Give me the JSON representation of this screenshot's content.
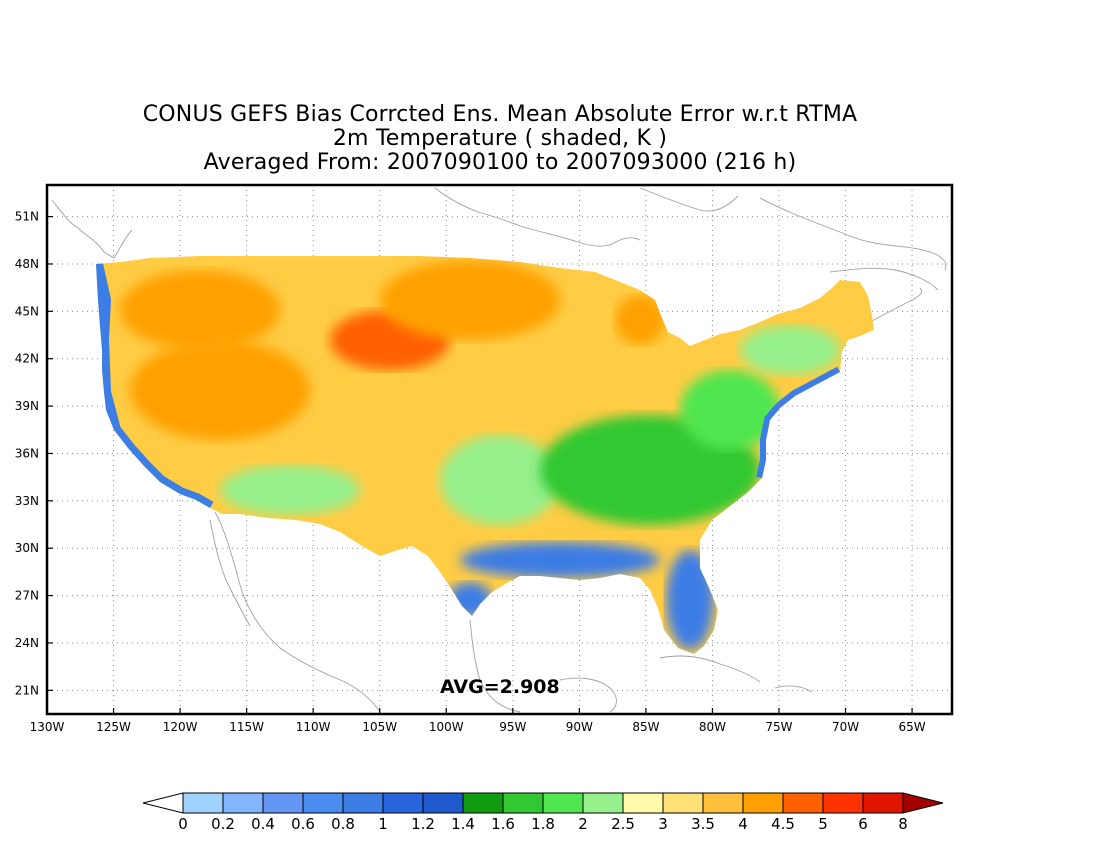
{
  "titles": {
    "line1": "CONUS GEFS Bias Corrcted Ens. Mean Absolute Error w.r.t RTMA",
    "line2": "2m Temperature ( shaded, K )",
    "line3": "Averaged From: 2007090100 to 2007093000 (216 h)"
  },
  "map": {
    "projection": "lat-lon",
    "lon_range": [
      -130,
      -62
    ],
    "lat_range": [
      19.5,
      53
    ],
    "grid": "dotted",
    "lat_ticks": [
      {
        "value": 51,
        "label": "51N"
      },
      {
        "value": 48,
        "label": "48N"
      },
      {
        "value": 45,
        "label": "45N"
      },
      {
        "value": 42,
        "label": "42N"
      },
      {
        "value": 39,
        "label": "39N"
      },
      {
        "value": 36,
        "label": "36N"
      },
      {
        "value": 33,
        "label": "33N"
      },
      {
        "value": 30,
        "label": "30N"
      },
      {
        "value": 27,
        "label": "27N"
      },
      {
        "value": 24,
        "label": "24N"
      },
      {
        "value": 21,
        "label": "21N"
      }
    ],
    "lon_ticks": [
      {
        "value": -130,
        "label": "130W"
      },
      {
        "value": -125,
        "label": "125W"
      },
      {
        "value": -120,
        "label": "120W"
      },
      {
        "value": -115,
        "label": "115W"
      },
      {
        "value": -110,
        "label": "110W"
      },
      {
        "value": -105,
        "label": "105W"
      },
      {
        "value": -100,
        "label": "100W"
      },
      {
        "value": -95,
        "label": "95W"
      },
      {
        "value": -90,
        "label": "90W"
      },
      {
        "value": -85,
        "label": "85W"
      },
      {
        "value": -80,
        "label": "80W"
      },
      {
        "value": -75,
        "label": "75W"
      },
      {
        "value": -70,
        "label": "70W"
      },
      {
        "value": -65,
        "label": "65W"
      }
    ],
    "avg_label": "AVG=2.908"
  },
  "colorbar": {
    "bins": [
      {
        "label": "0",
        "color": "#ffffff"
      },
      {
        "label": "0.2",
        "color": "#a0d2ff"
      },
      {
        "label": "0.4",
        "color": "#82b4ff"
      },
      {
        "label": "0.6",
        "color": "#6496f5"
      },
      {
        "label": "0.8",
        "color": "#4a8cf0"
      },
      {
        "label": "1",
        "color": "#3c7de6"
      },
      {
        "label": "1.2",
        "color": "#2864dc"
      },
      {
        "label": "1.4",
        "color": "#1e5acd"
      },
      {
        "label": "1.6",
        "color": "#109b10"
      },
      {
        "label": "1.8",
        "color": "#32c832"
      },
      {
        "label": "2",
        "color": "#50e650"
      },
      {
        "label": "2.5",
        "color": "#96f08c"
      },
      {
        "label": "3",
        "color": "#fffaaa"
      },
      {
        "label": "3.5",
        "color": "#ffe178"
      },
      {
        "label": "4",
        "color": "#ffc03c"
      },
      {
        "label": "4.5",
        "color": "#ffa000"
      },
      {
        "label": "5",
        "color": "#ff6000"
      },
      {
        "label": "6",
        "color": "#ff3200"
      },
      {
        "label": "8",
        "color": "#e11400"
      }
    ],
    "over_color": "#a50000"
  }
}
